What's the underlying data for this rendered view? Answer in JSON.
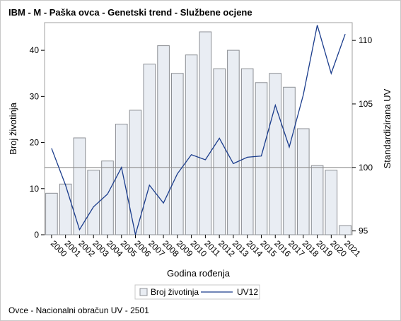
{
  "chart_data": {
    "type": "bar+line",
    "title": "IBM - M - Paška ovca - Genetski trend - Službene ocjene",
    "xlabel": "Godina rođenja",
    "ylabel_left": "Broj životinja",
    "ylabel_right": "Standardizirana UV",
    "categories": [
      "2000",
      "2001",
      "2002",
      "2003",
      "2004",
      "2005",
      "2006",
      "2007",
      "2008",
      "2009",
      "2010",
      "2011",
      "2012",
      "2013",
      "2014",
      "2015",
      "2016",
      "2017",
      "2018",
      "2019",
      "2020",
      "2021"
    ],
    "series": [
      {
        "name": "Broj životinja",
        "axis": "left",
        "kind": "bar",
        "values": [
          9,
          11,
          21,
          14,
          16,
          24,
          27,
          37,
          41,
          35,
          39,
          44,
          36,
          40,
          36,
          33,
          35,
          32,
          23,
          15,
          14,
          2
        ]
      },
      {
        "name": "UV12",
        "axis": "right",
        "kind": "line",
        "values": [
          101.5,
          98.6,
          95.1,
          96.9,
          97.9,
          100.0,
          94.7,
          98.6,
          97.2,
          99.5,
          101.0,
          100.6,
          102.3,
          100.3,
          100.8,
          100.9,
          104.9,
          101.6,
          105.7,
          111.2,
          107.4,
          110.5
        ]
      }
    ],
    "yticks_left": [
      "0",
      "10",
      "20",
      "30",
      "40"
    ],
    "yticks_right": [
      "95",
      "100",
      "105",
      "110"
    ],
    "ylim_left": [
      0,
      46
    ],
    "ylim_right": [
      94.7,
      111.4
    ],
    "reference_line_right": 100,
    "grid": false,
    "legend_position": "bottom"
  },
  "footnote": "Ovce - Nacionalni obračun UV - 2501",
  "colors": {
    "bar_fill": "#e9edf3",
    "bar_stroke": "#8c8f94",
    "line": "#1a3c8c",
    "reference_line": "#909090",
    "frame": "#c8c8c8"
  }
}
